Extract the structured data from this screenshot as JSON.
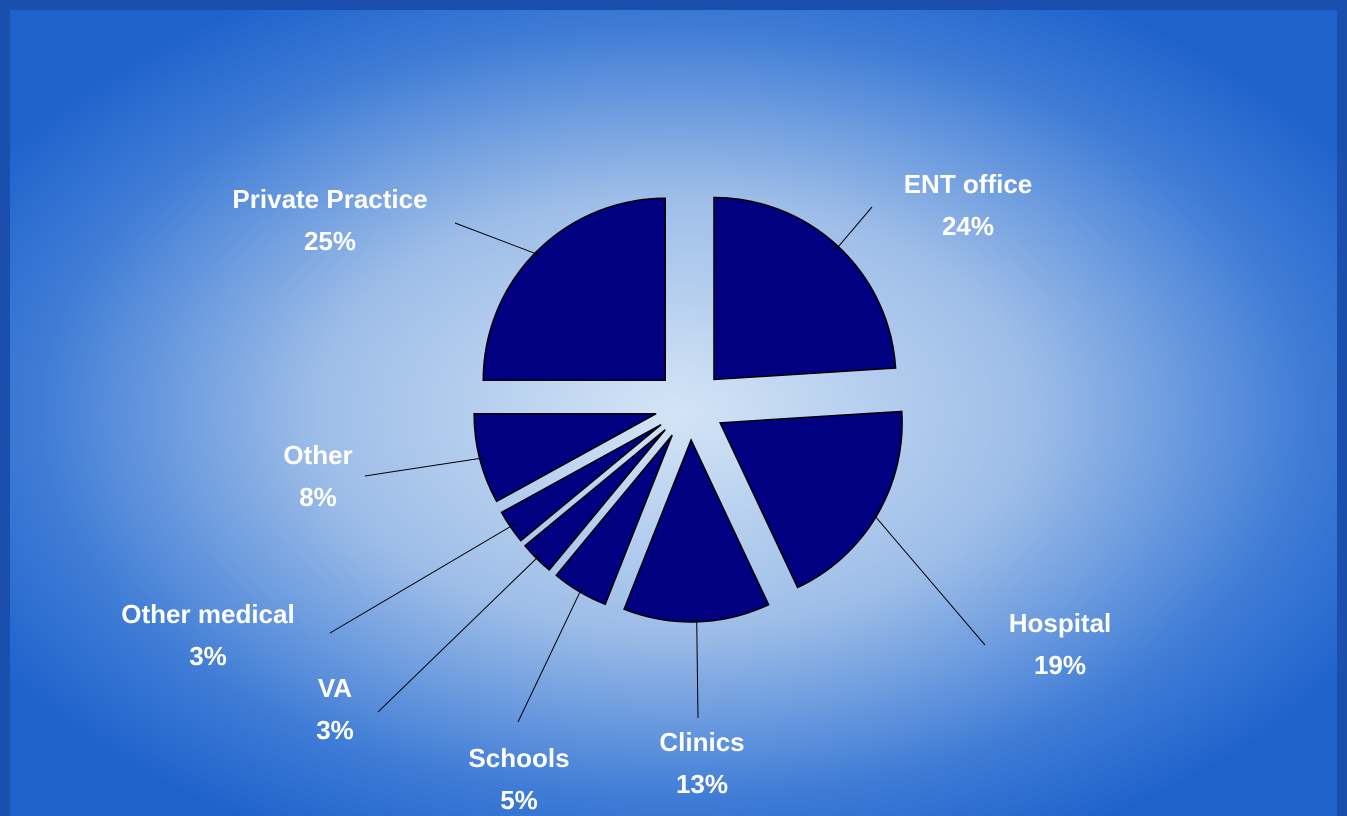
{
  "chart_data": {
    "type": "pie",
    "categories": [
      "ENT office",
      "Hospital",
      "Clinics",
      "Schools",
      "VA",
      "Other medical",
      "Other",
      "Private Practice"
    ],
    "values": [
      24,
      19,
      13,
      5,
      3,
      3,
      8,
      25
    ],
    "value_labels": [
      "24%",
      "19%",
      "13%",
      "5%",
      "3%",
      "3%",
      "8%",
      "25%"
    ],
    "color": "#000080"
  }
}
